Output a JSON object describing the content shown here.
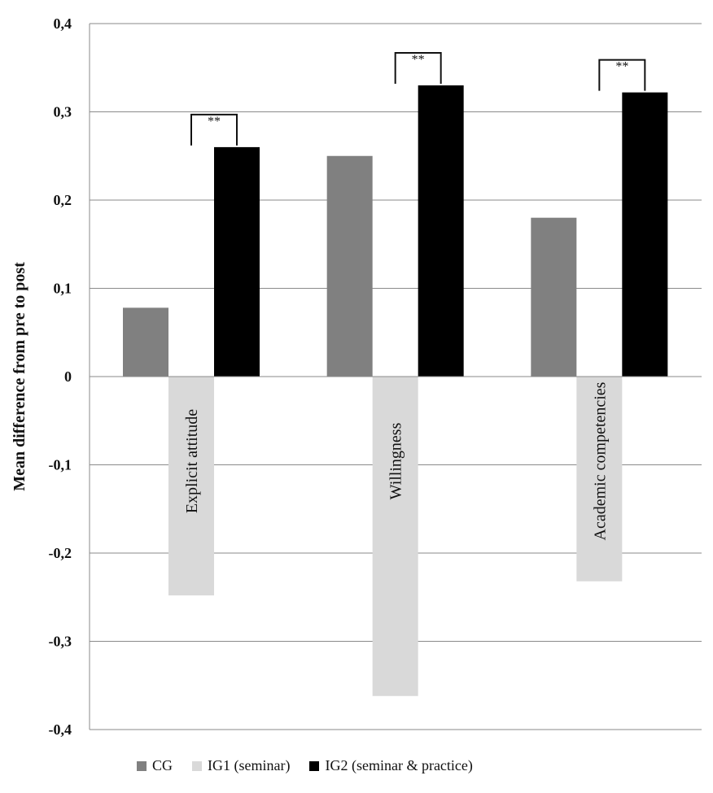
{
  "chart_data": {
    "type": "bar",
    "title": "",
    "xlabel": "",
    "ylabel": "Mean difference from pre to post",
    "ylim": [
      -0.4,
      0.4
    ],
    "yticks": [
      0.4,
      0.3,
      0.2,
      0.1,
      0,
      -0.1,
      -0.2,
      -0.3,
      -0.4
    ],
    "ytick_labels": [
      "0,4",
      "0,3",
      "0,2",
      "0,1",
      "0",
      "-0,1",
      "-0,2",
      "-0,3",
      "-0,4"
    ],
    "grid": true,
    "legend_position": "bottom",
    "categories": [
      "Explicit attitude",
      "Willingness",
      "Academic competencies"
    ],
    "series": [
      {
        "name": "CG",
        "color": "#808080",
        "values": [
          0.078,
          0.25,
          0.18
        ]
      },
      {
        "name": "IG1 (seminar)",
        "color": "#d9d9d9",
        "values": [
          -0.248,
          -0.362,
          -0.232
        ]
      },
      {
        "name": "IG2 (seminar & practice)",
        "color": "#000000",
        "values": [
          0.26,
          0.33,
          0.322
        ]
      }
    ],
    "annotations": [
      {
        "text": "**",
        "category": "Explicit attitude",
        "between": [
          "IG1 (seminar)",
          "IG2 (seminar & practice)"
        ]
      },
      {
        "text": "**",
        "category": "Willingness",
        "between": [
          "IG1 (seminar)",
          "IG2 (seminar & practice)"
        ]
      },
      {
        "text": "**",
        "category": "Academic competencies",
        "between": [
          "IG1 (seminar)",
          "IG2 (seminar & practice)"
        ]
      }
    ]
  }
}
